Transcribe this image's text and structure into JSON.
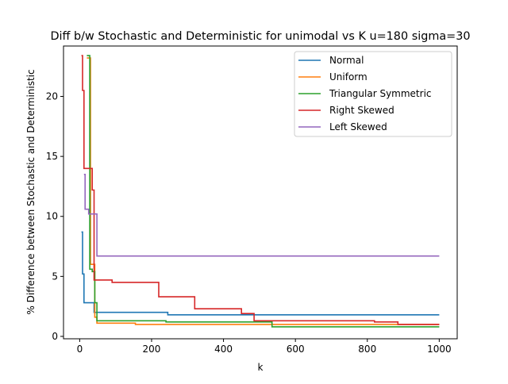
{
  "chart_data": {
    "type": "line",
    "title": "Diff b/w Stochastic and Deterministic for unimodal vs K u=180 sigma=30",
    "xlabel": "k",
    "ylabel": "% Difference between Stochastic and Deterministic",
    "xlim": [
      -45,
      1050
    ],
    "ylim": [
      -0.2,
      24.2
    ],
    "xticks": [
      0,
      200,
      400,
      600,
      800,
      1000
    ],
    "yticks": [
      0,
      5,
      10,
      15,
      20
    ],
    "grid": false,
    "legend_position": "upper-right",
    "drawstyle": "steps-post",
    "series": [
      {
        "name": "Normal",
        "color": "#1f77b4",
        "x": [
          5,
          8,
          12,
          25,
          40,
          245,
          1000
        ],
        "y": [
          8.7,
          5.2,
          2.8,
          2.8,
          2.0,
          1.8,
          1.8
        ]
      },
      {
        "name": "Uniform",
        "color": "#ff7f0e",
        "x": [
          20,
          30,
          42,
          48,
          155,
          1000
        ],
        "y": [
          23.2,
          6.0,
          1.6,
          1.1,
          1.0,
          1.0
        ]
      },
      {
        "name": "Triangular Symmetric",
        "color": "#2ca02c",
        "x": [
          20,
          25,
          28,
          35,
          42,
          48,
          240,
          535,
          1000
        ],
        "y": [
          23.4,
          23.4,
          5.6,
          5.4,
          2.8,
          1.3,
          1.2,
          0.8,
          0.8
        ]
      },
      {
        "name": "Right Skewed",
        "color": "#d62728",
        "x": [
          5,
          8,
          12,
          28,
          35,
          40,
          90,
          220,
          320,
          450,
          485,
          820,
          885,
          1000
        ],
        "y": [
          23.4,
          20.5,
          14.0,
          14.0,
          12.2,
          4.7,
          4.5,
          3.3,
          2.3,
          1.9,
          1.3,
          1.2,
          1.0,
          1.0
        ]
      },
      {
        "name": "Left Skewed",
        "color": "#9467bd",
        "x": [
          12,
          15,
          25,
          35,
          48,
          1000
        ],
        "y": [
          13.5,
          10.6,
          10.2,
          10.2,
          6.7,
          6.7
        ]
      }
    ]
  }
}
